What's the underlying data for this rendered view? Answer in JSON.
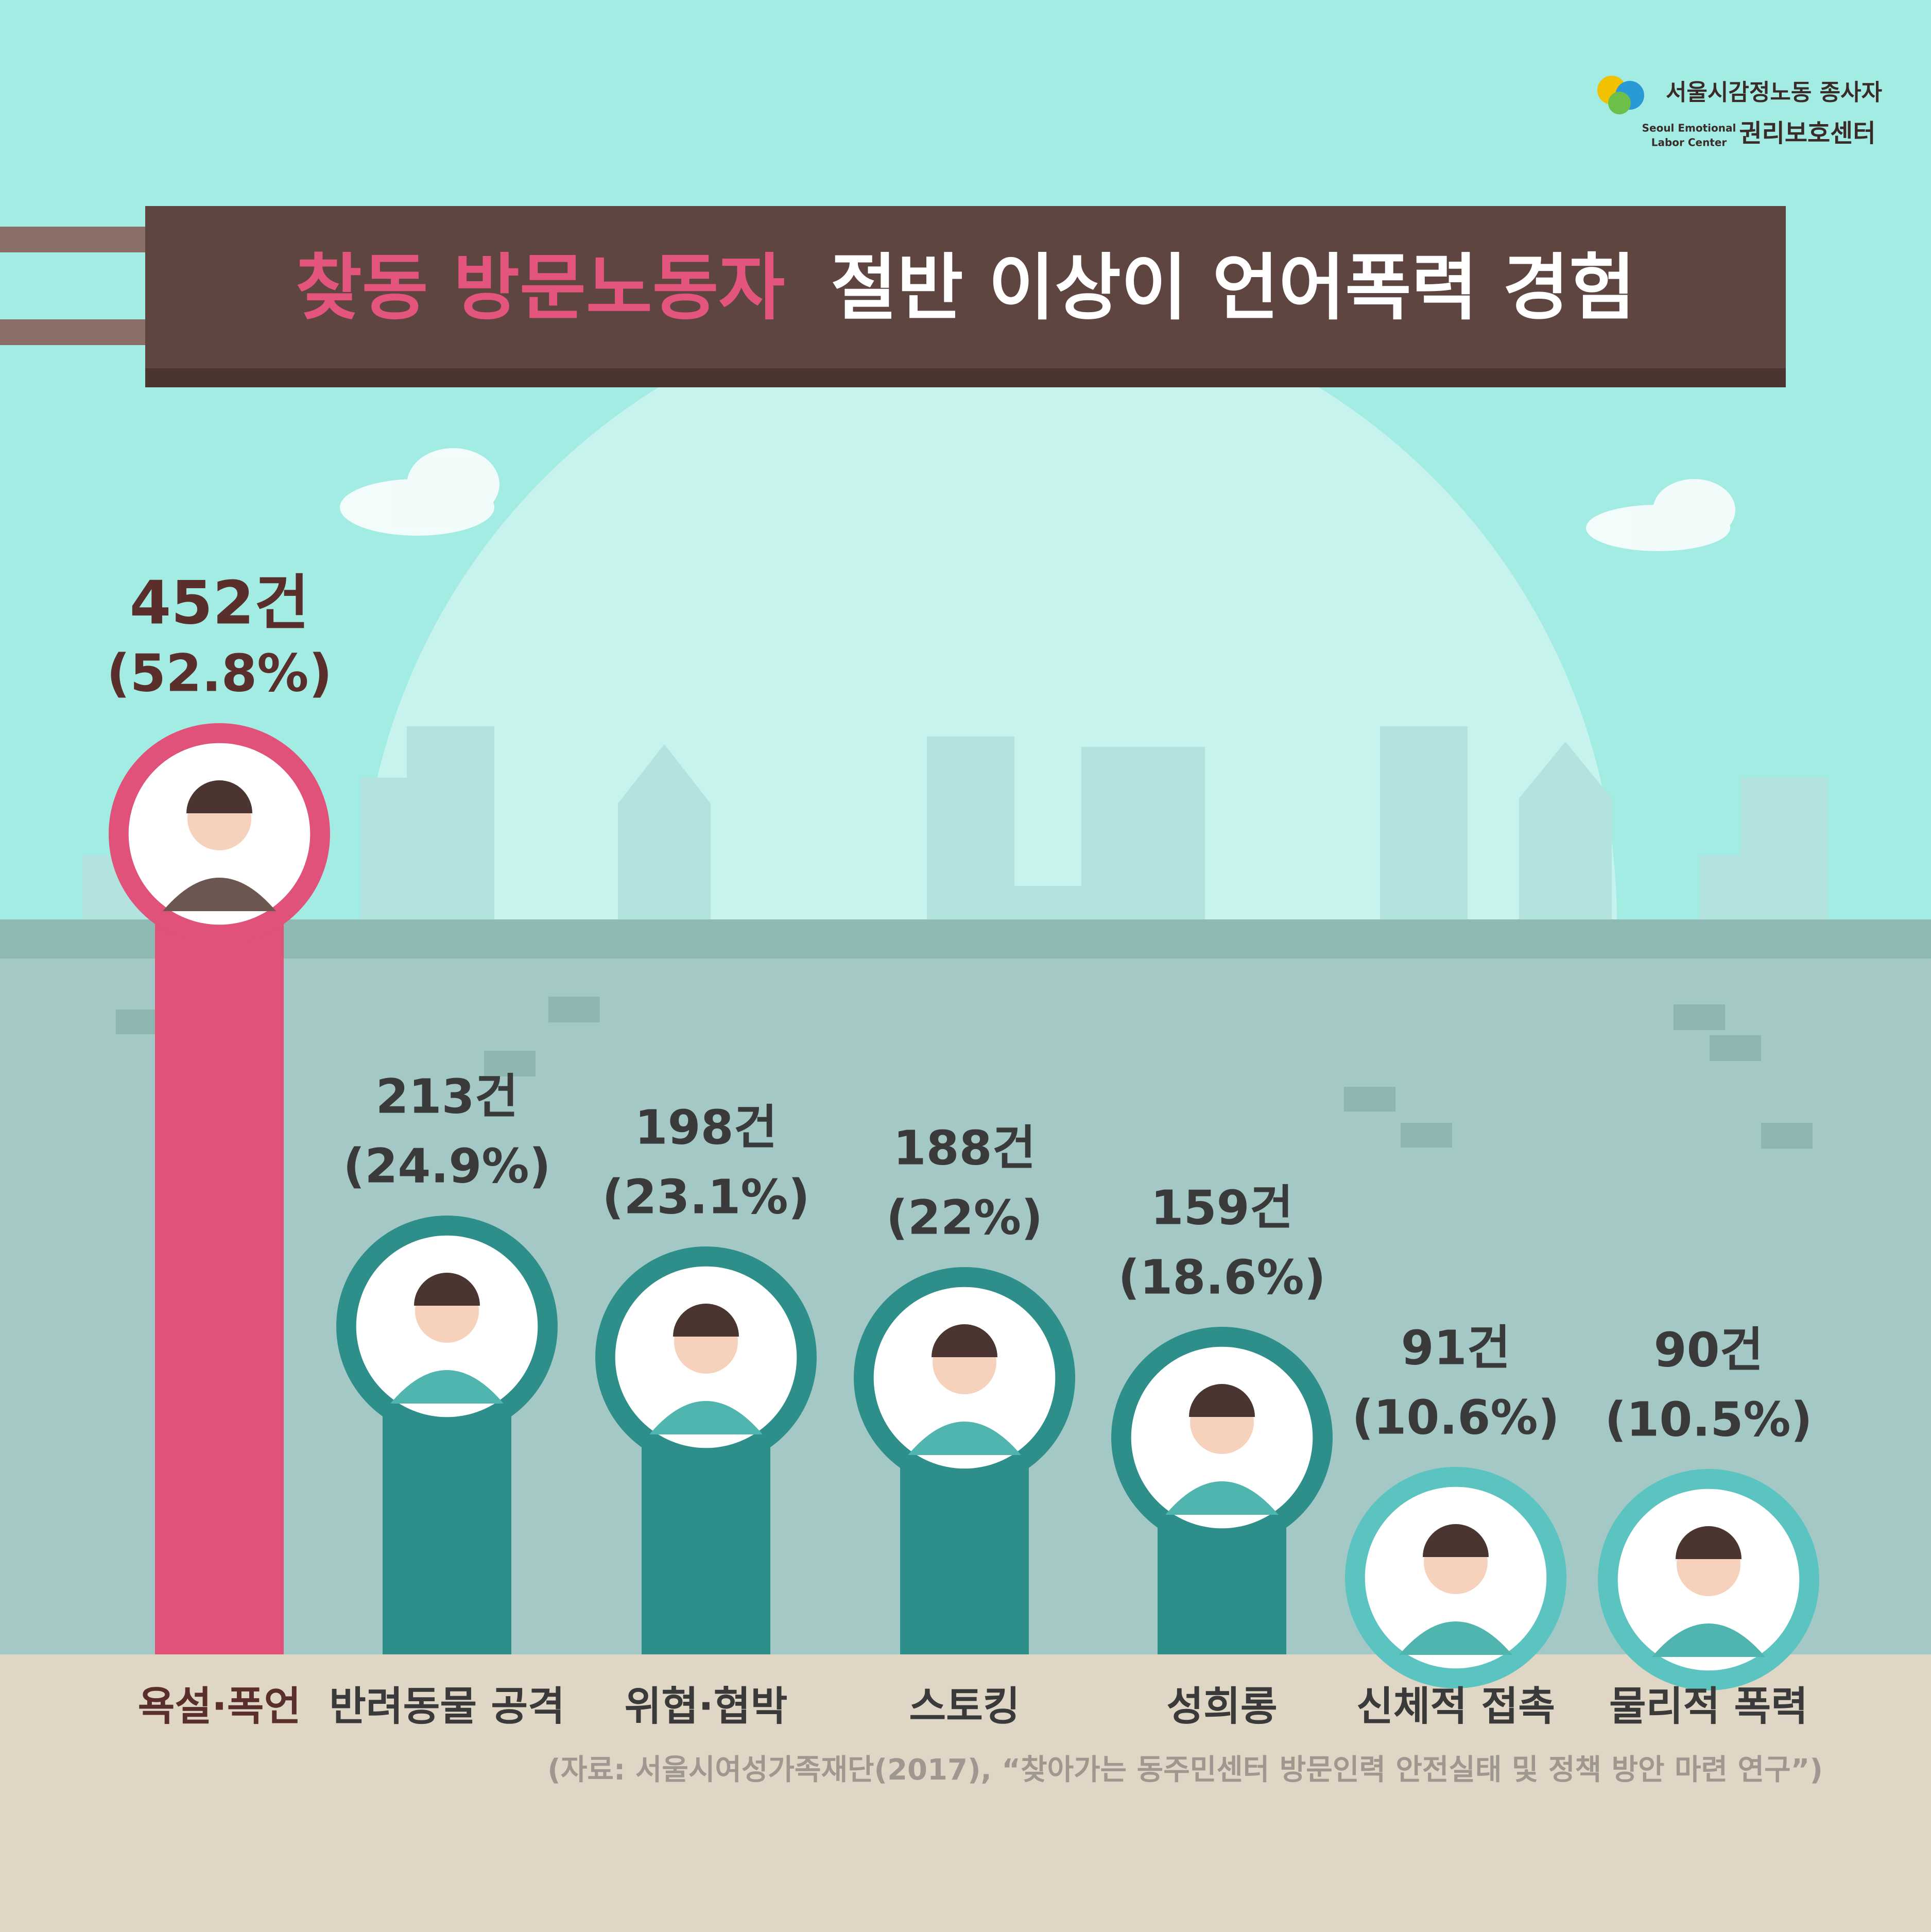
{
  "logo": {
    "name_line1": "서울시감정노동 종사자",
    "name_line2": "권리보호센터",
    "english_line1": "Seoul Emotional",
    "english_line2": "Labor Center"
  },
  "chart_data": {
    "type": "bar",
    "title_highlight": "찾동 방문노동자",
    "title": "절반 이상이 언어폭력 경험",
    "categories": [
      "욕설·폭언",
      "반려동물 공격",
      "위협·협박",
      "스토킹",
      "성희롱",
      "신체적 접촉",
      "물리적 폭력"
    ],
    "values": [
      452,
      213,
      198,
      188,
      159,
      91,
      90
    ],
    "value_labels": [
      "452건",
      "213건",
      "198건",
      "188건",
      "159건",
      "91건",
      "90건"
    ],
    "percent_labels": [
      "(52.8%)",
      "(24.9%)",
      "(23.1%)",
      "(22%)",
      "(18.6%)",
      "(10.6%)",
      "(10.5%)"
    ],
    "colors": [
      "#e0527a",
      "#2e8f8a",
      "#2e8f8a",
      "#2e8f8a",
      "#2e8f8a",
      "#5bc4c0",
      "#5bc4c0"
    ],
    "source": "(자료: 서울시여성가족재단(2017), “찾아가는 동주민센터 방문인력 안전실태 및 정책 방안 마련 연구”)"
  }
}
